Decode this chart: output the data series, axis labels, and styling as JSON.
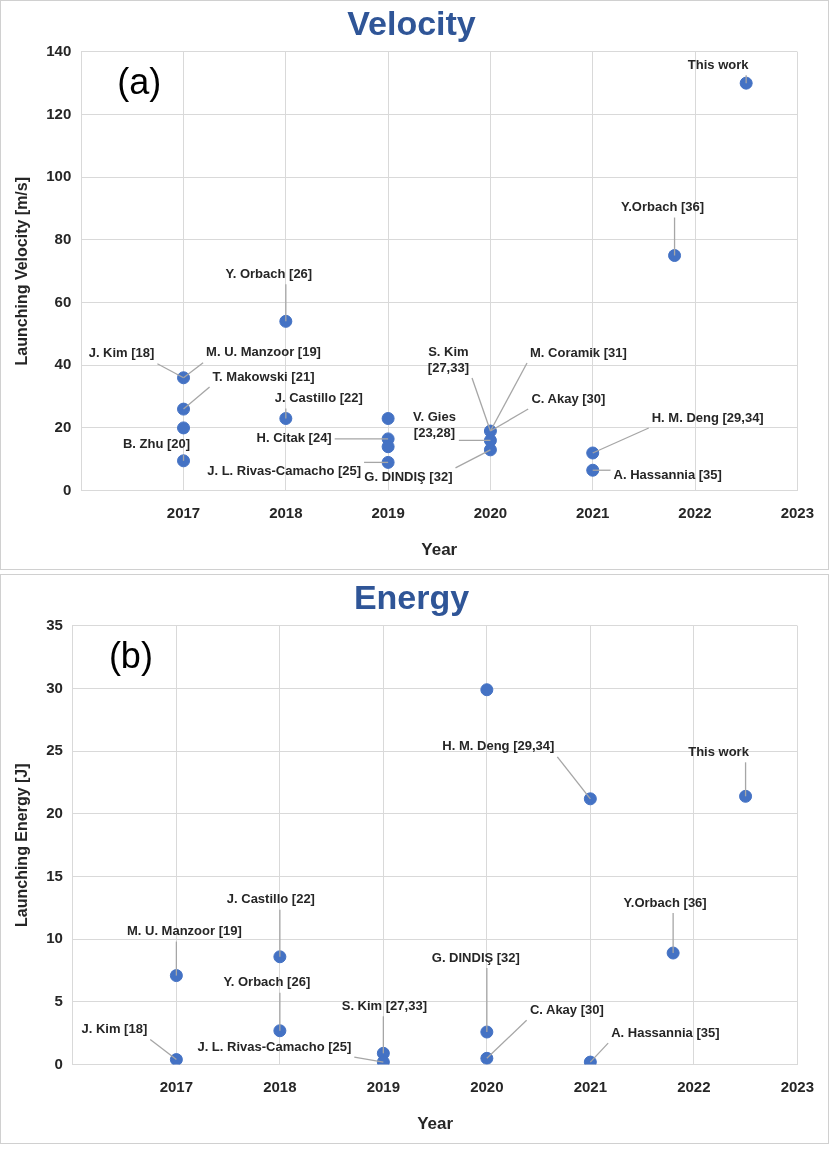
{
  "chart_data": [
    {
      "type": "scatter",
      "title": "Velocity",
      "xlabel": "Year",
      "ylabel": "Launching Velocity [m/s]",
      "xlim": [
        2016,
        2023
      ],
      "xticks": [
        2017,
        2018,
        2019,
        2020,
        2021,
        2022,
        2023
      ],
      "ylim": [
        0,
        140
      ],
      "yticks": [
        0,
        20,
        40,
        60,
        80,
        100,
        120,
        140
      ],
      "grid": true,
      "legend": false,
      "marker": "circle",
      "series": [
        {
          "color": "#4472c4",
          "x": [
            2017,
            2017,
            2017,
            2017,
            2018,
            2018,
            2019,
            2019,
            2019,
            2019,
            2020,
            2020,
            2020,
            2021,
            2021,
            2021.8,
            2022.5
          ],
          "values": [
            36,
            26,
            20,
            9.5,
            54,
            23,
            23,
            16.5,
            14,
            9,
            19,
            16,
            13,
            12,
            6.5,
            75,
            130
          ]
        }
      ],
      "annotations": [
        "(a)",
        {
          "text": "This work",
          "x": 2022.5,
          "y": 130
        },
        {
          "text": "Y.Orbach [36]",
          "x": 2021.8,
          "y": 75
        },
        {
          "text": "Y. Orbach [26]",
          "x": 2018,
          "y": 54
        },
        {
          "text": "J. Kim [18]",
          "x": 2017,
          "y": 36
        },
        {
          "text": "M. U. Manzoor [19]",
          "x": 2017,
          "y": 36
        },
        {
          "text": "T. Makowski [21]",
          "x": 2017,
          "y": 26
        },
        {
          "text": "B. Zhu [20]",
          "x": 2017,
          "y": 9.5
        },
        {
          "text": "J. Castillo [22]",
          "x": 2018,
          "y": 23
        },
        {
          "text": "H. Citak [24]",
          "x": 2019,
          "y": 16.5
        },
        {
          "text": "J. L. Rivas-Camacho [25]",
          "x": 2019,
          "y": 9
        },
        {
          "text": "V. Gies [23,28]",
          "x": 2020,
          "y": 16
        },
        {
          "text": "S. Kim [27,33]",
          "x": 2020,
          "y": 19
        },
        {
          "text": "M. Coramik [31]",
          "x": 2020,
          "y": 19
        },
        {
          "text": "C. Akay [30]",
          "x": 2020,
          "y": 19
        },
        {
          "text": "G. DINDIŞ [32]",
          "x": 2020,
          "y": 13
        },
        {
          "text": "H. M. Deng [29,34]",
          "x": 2021,
          "y": 12
        },
        {
          "text": "A. Hassannia [35]",
          "x": 2021,
          "y": 6.5
        }
      ]
    },
    {
      "type": "scatter",
      "title": "Energy",
      "xlabel": "Year",
      "ylabel": "Launching Energy [J]",
      "xlim": [
        2016,
        2023
      ],
      "xticks": [
        2017,
        2018,
        2019,
        2020,
        2021,
        2022,
        2023
      ],
      "ylim": [
        0,
        35
      ],
      "yticks": [
        0,
        5,
        10,
        15,
        20,
        25,
        30,
        35
      ],
      "grid": true,
      "legend": false,
      "marker": "circle",
      "series": [
        {
          "color": "#4472c4",
          "x": [
            2017,
            2017,
            2018,
            2018,
            2019,
            2019,
            2020,
            2020,
            2020,
            2021,
            2021,
            2021.8,
            2022.5
          ],
          "values": [
            7.1,
            0.4,
            8.6,
            2.7,
            0.9,
            0.2,
            29.9,
            2.6,
            0.5,
            21.2,
            0.2,
            8.9,
            21.4
          ]
        }
      ],
      "annotations": [
        "(b)",
        {
          "text": "M. U. Manzoor [19]",
          "x": 2017,
          "y": 7.1
        },
        {
          "text": "J. Kim [18]",
          "x": 2017,
          "y": 0.4
        },
        {
          "text": "J. Castillo [22]",
          "x": 2018,
          "y": 8.6
        },
        {
          "text": "Y. Orbach [26]",
          "x": 2018,
          "y": 2.7
        },
        {
          "text": "J. L. Rivas-Camacho [25]",
          "x": 2019,
          "y": 0.2
        },
        {
          "text": "S. Kim [27,33]",
          "x": 2019,
          "y": 0.9
        },
        {
          "text": "G. DINDIŞ [32]",
          "x": 2020,
          "y": 2.6
        },
        {
          "text": "C. Akay [30]",
          "x": 2020,
          "y": 0.5
        },
        {
          "text": "H. M. Deng [29,34]",
          "x": 2021,
          "y": 21.2
        },
        {
          "text": "This work",
          "x": 2022.5,
          "y": 21.4
        },
        {
          "text": "Y.Orbach [36]",
          "x": 2021.8,
          "y": 8.9
        },
        {
          "text": "A. Hassannia [35]",
          "x": 2021,
          "y": 0.2
        }
      ]
    }
  ]
}
